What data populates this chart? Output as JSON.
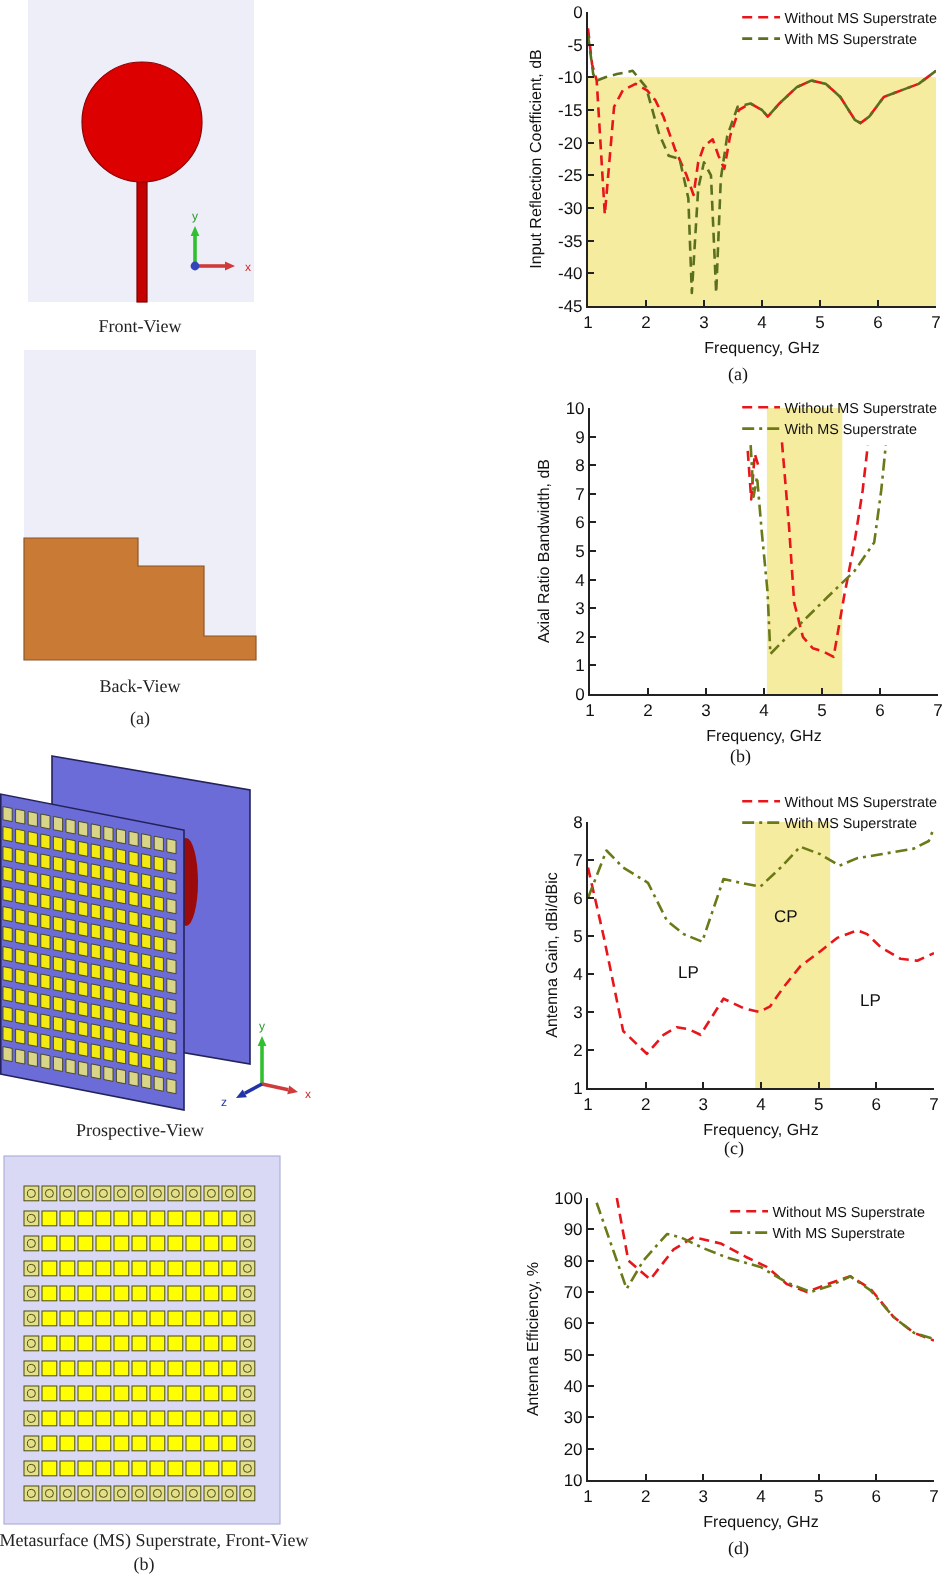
{
  "chart_data": [
    {
      "type": "other",
      "annotations": [
        "Front-View",
        "y",
        "x",
        "Back-View",
        "(a)",
        "Prospective-View",
        "y",
        "x",
        "z",
        "Metasurface (MS) Superstrate, Front-View",
        "(b)"
      ]
    },
    {
      "type": "line",
      "xlabel": "Frequency, GHz",
      "ylabel": "Input Reflection Coefficient, dB",
      "xlim": [
        1,
        7
      ],
      "xticks": [
        1,
        2,
        3,
        4,
        5,
        6,
        7
      ],
      "ylim": [
        -45,
        0
      ],
      "yticks": [
        -45,
        -40,
        -35,
        -30,
        -25,
        -20,
        -15,
        -10,
        -5,
        0
      ],
      "legend": "top right",
      "line_style": "dashed",
      "bands": [
        {
          "axis": "y",
          "from": -45,
          "to": -10,
          "color": "#f6ec9f"
        }
      ],
      "annotations": [
        "(a)"
      ],
      "series": [
        {
          "name": "Without MS Superstrate",
          "color": "#e8161b",
          "x": [
            1,
            1.07,
            1.15,
            1.29,
            1.45,
            1.6,
            1.82,
            2.02,
            2.16,
            2.3,
            2.5,
            2.7,
            2.82,
            2.9,
            3,
            3.15,
            3.25,
            3.35,
            3.45,
            3.6,
            3.8,
            4,
            4.1,
            4.3,
            4.6,
            4.85,
            5.1,
            5.35,
            5.6,
            5.7,
            5.85,
            6.1,
            6.4,
            6.7,
            7
          ],
          "values": [
            -2.5,
            -8,
            -10.5,
            -31,
            -14.5,
            -12,
            -11,
            -12,
            -13.5,
            -16,
            -21,
            -25,
            -28,
            -23,
            -20.5,
            -19.5,
            -22,
            -24,
            -19,
            -15,
            -14,
            -15,
            -16,
            -14,
            -11.5,
            -10.5,
            -11,
            -13,
            -16.5,
            -17,
            -16,
            -13,
            -12,
            -11,
            -9
          ]
        },
        {
          "name": "With MS Superstrate",
          "color": "#5b701f",
          "x": [
            1,
            1.09,
            1.15,
            1.3,
            1.5,
            1.77,
            2,
            2.22,
            2.39,
            2.58,
            2.73,
            2.79,
            2.9,
            3,
            3.12,
            3.21,
            3.29,
            3.4,
            3.58,
            3.8,
            4,
            4.1,
            4.3,
            4.6,
            4.85,
            5.1,
            5.35,
            5.6,
            5.7,
            5.85,
            6.1,
            6.4,
            6.7,
            7
          ],
          "values": [
            -3.5,
            -9.5,
            -10.5,
            -10,
            -9.5,
            -9,
            -11.5,
            -18.5,
            -22,
            -22.5,
            -28.5,
            -43,
            -27,
            -23,
            -25,
            -43,
            -25.5,
            -19,
            -14.5,
            -14,
            -15,
            -16,
            -14,
            -11.5,
            -10.5,
            -11,
            -13,
            -16.5,
            -17,
            -16,
            -13,
            -12,
            -11,
            -9
          ]
        }
      ]
    },
    {
      "type": "line",
      "xlabel": "Frequency, GHz",
      "ylabel": "Axial Ratio Bandwidth, dB",
      "xlim": [
        1,
        7
      ],
      "xticks": [
        1,
        2,
        3,
        4,
        5,
        6,
        7
      ],
      "ylim": [
        0,
        10
      ],
      "yticks": [
        0,
        1,
        2,
        3,
        4,
        5,
        6,
        7,
        8,
        9,
        10
      ],
      "legend": "top right",
      "line_style": "dashed",
      "bands": [
        {
          "axis": "x",
          "from": 4.05,
          "to": 5.35,
          "color": "#f6ec9f"
        }
      ],
      "annotations": [
        "(b)"
      ],
      "series": [
        {
          "name": "Without MS Superstrate",
          "color": "#e8161b",
          "x": [
            3.72,
            3.78,
            3.84,
            3.9,
            4,
            4.31,
            4.43,
            4.52,
            4.67,
            4.84,
            5.01,
            5.2,
            5.38,
            5.56,
            5.7,
            5.79
          ],
          "values": [
            8.5,
            6.8,
            8.4,
            8,
            null,
            8.8,
            5.9,
            3.2,
            2,
            1.6,
            1.5,
            1.3,
            3.4,
            5.3,
            7.1,
            8.7
          ]
        },
        {
          "name": "With MS Superstrate",
          "color": "#6b7a17",
          "line_style": "dashdot",
          "x": [
            3.77,
            3.82,
            3.88,
            3.96,
            4.06,
            4.11,
            4.4,
            4.75,
            5.1,
            5.56,
            5.9,
            6.02,
            6.1
          ],
          "values": [
            8.7,
            6.9,
            7.6,
            5.7,
            3.6,
            1.4,
            2,
            2.7,
            3.4,
            4.3,
            5.3,
            7.1,
            8.7
          ]
        }
      ]
    },
    {
      "type": "line",
      "xlabel": "Frequency, GHz",
      "ylabel": "Antenna Gain, dBi/dBic",
      "xlim": [
        1,
        7
      ],
      "xticks": [
        1,
        2,
        3,
        4,
        5,
        6,
        7
      ],
      "ylim": [
        1,
        8
      ],
      "yticks": [
        1,
        2,
        3,
        4,
        5,
        6,
        7,
        8
      ],
      "legend": "top right",
      "line_style": "dashed",
      "bands": [
        {
          "axis": "x",
          "from": 3.9,
          "to": 5.2,
          "color": "#f6ec9f"
        }
      ],
      "annotations": [
        "CP",
        "LP",
        "LP",
        "(c)"
      ],
      "series": [
        {
          "name": "Without MS Superstrate",
          "color": "#e8161b",
          "x": [
            1,
            1.27,
            1.61,
            2.02,
            2.31,
            2.54,
            2.74,
            2.95,
            3.35,
            3.7,
            3.97,
            4.16,
            4.39,
            4.68,
            5.03,
            5.32,
            5.67,
            5.84,
            6.08,
            6.42,
            6.71,
            7
          ],
          "values": [
            6.8,
            5,
            2.5,
            1.9,
            2.4,
            2.6,
            2.55,
            2.4,
            3.35,
            3.1,
            3,
            3.15,
            3.65,
            4.2,
            4.6,
            4.95,
            5.15,
            5.05,
            4.7,
            4.4,
            4.35,
            4.55
          ]
        },
        {
          "name": "With MS Superstrate",
          "color": "#6b7a17",
          "line_style": "dashdot",
          "x": [
            1,
            1.32,
            1.61,
            2.04,
            2.37,
            2.66,
            2.98,
            3.35,
            3.64,
            3.99,
            4.34,
            4.68,
            5.03,
            5.36,
            5.67,
            6.08,
            6.65,
            6.91,
            7
          ],
          "values": [
            6,
            7.25,
            6.8,
            6.4,
            5.4,
            5.05,
            4.85,
            6.5,
            6.4,
            6.3,
            6.8,
            7.35,
            7.15,
            6.85,
            7.05,
            7.15,
            7.3,
            7.5,
            7.85
          ]
        }
      ]
    },
    {
      "type": "line",
      "xlabel": "Frequency, GHz",
      "ylabel": "Antenna Efficiency, %",
      "xlim": [
        1,
        7
      ],
      "xticks": [
        1,
        2,
        3,
        4,
        5,
        6,
        7
      ],
      "ylim": [
        10,
        100
      ],
      "yticks": [
        10,
        20,
        30,
        40,
        50,
        60,
        70,
        80,
        90,
        100
      ],
      "legend": "top right",
      "line_style": "dashed",
      "annotations": [
        "(d)"
      ],
      "series": [
        {
          "name": "Without MS Superstrate",
          "color": "#e8161b",
          "x": [
            1.5,
            1.7,
            2.08,
            2.48,
            2.83,
            3.3,
            3.76,
            4.1,
            4.45,
            4.8,
            5.15,
            5.55,
            5.9,
            6.3,
            6.65,
            7
          ],
          "values": [
            100,
            80,
            74,
            83.5,
            87.5,
            85.5,
            81,
            78,
            72.5,
            70,
            72.5,
            75,
            71,
            62,
            57,
            54.5
          ]
        },
        {
          "name": "With MS Superstrate",
          "color": "#6b7a17",
          "line_style": "dashdot",
          "x": [
            1.15,
            1.67,
            1.96,
            2.37,
            2.6,
            3,
            3.41,
            3.99,
            4.45,
            4.86,
            5.2,
            5.55,
            5.9,
            6.3,
            6.65,
            7
          ],
          "values": [
            98.5,
            71,
            80,
            88.5,
            87.5,
            84,
            81,
            78,
            73,
            70,
            72,
            75,
            70.5,
            62,
            57,
            55
          ]
        }
      ]
    }
  ]
}
